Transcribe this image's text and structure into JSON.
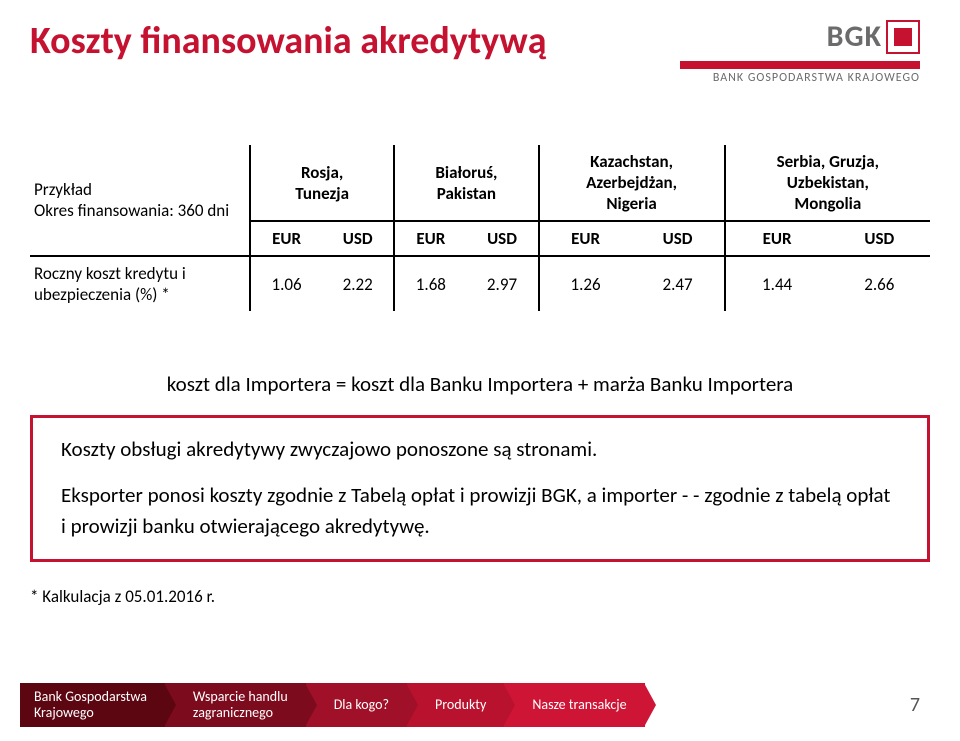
{
  "title": "Koszty finansowania akredytywą",
  "logo": {
    "brand": "BGK",
    "subtitle": "BANK GOSPODARSTWA KRAJOWEGO"
  },
  "table": {
    "row_header_1": "Przykład",
    "row_header_2": "Okres finansowania: 360 dni",
    "groups": [
      {
        "line1": "Rosja,",
        "line2": "Tunezja"
      },
      {
        "line1": "Białoruś,",
        "line2": "Pakistan"
      },
      {
        "line1": "Kazachstan,",
        "line2": "Azerbejdżan,",
        "line3": "Nigeria"
      },
      {
        "line1": "Serbia, Gruzja,",
        "line2": "Uzbekistan,",
        "line3": "Mongolia"
      }
    ],
    "currencies": {
      "eur": "EUR",
      "usd": "USD"
    },
    "data_row_label": "Roczny koszt kredytu i ubezpieczenia (%) *",
    "values": [
      "1.06",
      "2.22",
      "1.68",
      "2.97",
      "1.26",
      "2.47",
      "1.44",
      "2.66"
    ]
  },
  "cost_line": "koszt dla Importera = koszt dla Banku Importera + marża Banku Importera",
  "box": {
    "p1": "Koszty obsługi akredytywy zwyczajowo ponoszone są stronami.",
    "p2": "Eksporter ponosi koszty zgodnie z Tabelą opłat i prowizji BGK, a importer  - - zgodnie z tabelą opłat i prowizji banku otwierającego akredytywę."
  },
  "calc_note": "* Kalkulacja z 05.01.2016 r.",
  "breadcrumb": [
    "Bank Gospodarstwa\nKrajowego",
    "Wsparcie handlu\nzagranicznego",
    "Dla kogo?",
    "Produkty",
    "Nasze transakcje"
  ],
  "page_number": "7",
  "colors": {
    "brand_red": "#c41230"
  }
}
